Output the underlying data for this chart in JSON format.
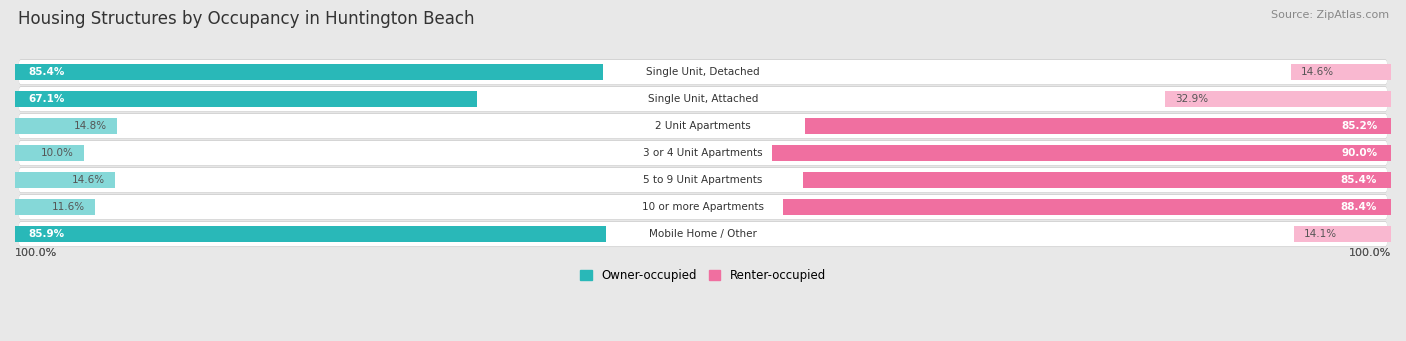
{
  "title": "Housing Structures by Occupancy in Huntington Beach",
  "source": "Source: ZipAtlas.com",
  "categories": [
    "Single Unit, Detached",
    "Single Unit, Attached",
    "2 Unit Apartments",
    "3 or 4 Unit Apartments",
    "5 to 9 Unit Apartments",
    "10 or more Apartments",
    "Mobile Home / Other"
  ],
  "owner_pct": [
    85.4,
    67.1,
    14.8,
    10.0,
    14.6,
    11.6,
    85.9
  ],
  "renter_pct": [
    14.6,
    32.9,
    85.2,
    90.0,
    85.4,
    88.4,
    14.1
  ],
  "owner_color_dark": "#29b8b8",
  "owner_color_light": "#85d8d8",
  "renter_color_dark": "#f06fa0",
  "renter_color_light": "#f9b8d0",
  "bg_color": "#e8e8e8",
  "row_bg_color": "#f5f5f5",
  "row_shadow_color": "#d0d0d0",
  "title_fontsize": 12,
  "source_fontsize": 8,
  "bar_height": 0.62,
  "legend_owner": "Owner-occupied",
  "legend_renter": "Renter-occupied",
  "left_axis_label": "100.0%",
  "right_axis_label": "100.0%"
}
